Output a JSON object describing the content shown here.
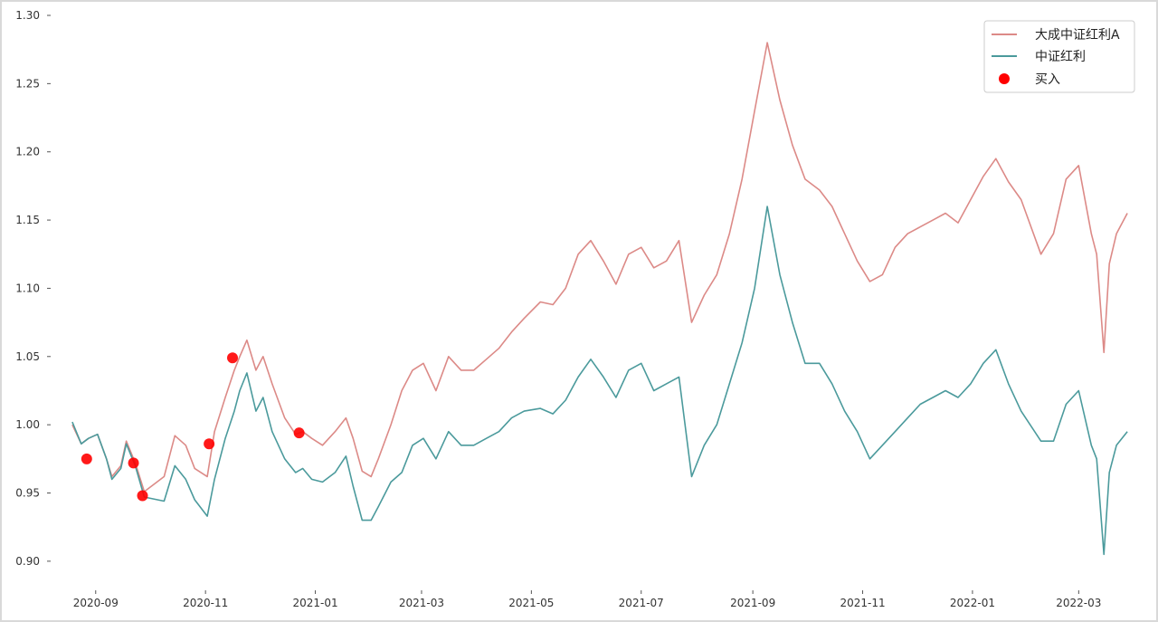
{
  "chart_data": {
    "type": "line",
    "x_start": "2020-08-19",
    "x_end": "2022-03-28",
    "xlim": [
      "2020-08-08",
      "2022-04-05"
    ],
    "ylim": [
      0.88,
      1.3
    ],
    "x_ticks": [
      "2020-09",
      "2020-11",
      "2021-01",
      "2021-03",
      "2021-05",
      "2021-07",
      "2021-09",
      "2021-11",
      "2022-01",
      "2022-03"
    ],
    "y_ticks": [
      "0.90",
      "0.95",
      "1.00",
      "1.05",
      "1.10",
      "1.15",
      "1.20",
      "1.25",
      "1.30"
    ],
    "grid": false,
    "legend_position": "top-right",
    "series": [
      {
        "name": "大成中证红利A",
        "color": "#dc8a87",
        "points": [
          [
            "2020-08-19",
            1.0
          ],
          [
            "2020-08-24",
            0.986
          ],
          [
            "2020-08-28",
            0.99
          ],
          [
            "2020-09-02",
            0.993
          ],
          [
            "2020-09-07",
            0.975
          ],
          [
            "2020-09-10",
            0.962
          ],
          [
            "2020-09-15",
            0.97
          ],
          [
            "2020-09-18",
            0.988
          ],
          [
            "2020-09-23",
            0.972
          ],
          [
            "2020-09-28",
            0.951
          ],
          [
            "2020-10-09",
            0.962
          ],
          [
            "2020-10-15",
            0.992
          ],
          [
            "2020-10-21",
            0.985
          ],
          [
            "2020-10-26",
            0.968
          ],
          [
            "2020-11-02",
            0.962
          ],
          [
            "2020-11-06",
            0.995
          ],
          [
            "2020-11-12",
            1.02
          ],
          [
            "2020-11-17",
            1.04
          ],
          [
            "2020-11-20",
            1.05
          ],
          [
            "2020-11-24",
            1.062
          ],
          [
            "2020-11-29",
            1.04
          ],
          [
            "2020-12-03",
            1.05
          ],
          [
            "2020-12-08",
            1.03
          ],
          [
            "2020-12-15",
            1.005
          ],
          [
            "2020-12-21",
            0.993
          ],
          [
            "2020-12-25",
            0.995
          ],
          [
            "2020-12-30",
            0.99
          ],
          [
            "2021-01-05",
            0.985
          ],
          [
            "2021-01-12",
            0.995
          ],
          [
            "2021-01-18",
            1.005
          ],
          [
            "2021-01-22",
            0.99
          ],
          [
            "2021-01-27",
            0.966
          ],
          [
            "2021-02-01",
            0.962
          ],
          [
            "2021-02-05",
            0.975
          ],
          [
            "2021-02-12",
            1.0
          ],
          [
            "2021-02-18",
            1.025
          ],
          [
            "2021-02-24",
            1.04
          ],
          [
            "2021-03-02",
            1.045
          ],
          [
            "2021-03-09",
            1.025
          ],
          [
            "2021-03-16",
            1.05
          ],
          [
            "2021-03-23",
            1.04
          ],
          [
            "2021-03-30",
            1.04
          ],
          [
            "2021-04-06",
            1.048
          ],
          [
            "2021-04-13",
            1.056
          ],
          [
            "2021-04-20",
            1.068
          ],
          [
            "2021-04-27",
            1.078
          ],
          [
            "2021-05-06",
            1.09
          ],
          [
            "2021-05-13",
            1.088
          ],
          [
            "2021-05-20",
            1.1
          ],
          [
            "2021-05-27",
            1.125
          ],
          [
            "2021-06-03",
            1.135
          ],
          [
            "2021-06-10",
            1.12
          ],
          [
            "2021-06-17",
            1.103
          ],
          [
            "2021-06-24",
            1.125
          ],
          [
            "2021-07-01",
            1.13
          ],
          [
            "2021-07-08",
            1.115
          ],
          [
            "2021-07-15",
            1.12
          ],
          [
            "2021-07-22",
            1.135
          ],
          [
            "2021-07-29",
            1.075
          ],
          [
            "2021-08-05",
            1.095
          ],
          [
            "2021-08-12",
            1.11
          ],
          [
            "2021-08-19",
            1.14
          ],
          [
            "2021-08-26",
            1.18
          ],
          [
            "2021-09-02",
            1.23
          ],
          [
            "2021-09-09",
            1.28
          ],
          [
            "2021-09-16",
            1.238
          ],
          [
            "2021-09-23",
            1.205
          ],
          [
            "2021-09-30",
            1.18
          ],
          [
            "2021-10-08",
            1.172
          ],
          [
            "2021-10-15",
            1.16
          ],
          [
            "2021-10-22",
            1.14
          ],
          [
            "2021-10-29",
            1.12
          ],
          [
            "2021-11-05",
            1.105
          ],
          [
            "2021-11-12",
            1.11
          ],
          [
            "2021-11-19",
            1.13
          ],
          [
            "2021-11-26",
            1.14
          ],
          [
            "2021-12-03",
            1.145
          ],
          [
            "2021-12-10",
            1.15
          ],
          [
            "2021-12-17",
            1.155
          ],
          [
            "2021-12-24",
            1.148
          ],
          [
            "2021-12-31",
            1.165
          ],
          [
            "2022-01-07",
            1.182
          ],
          [
            "2022-01-14",
            1.195
          ],
          [
            "2022-01-21",
            1.178
          ],
          [
            "2022-01-28",
            1.165
          ],
          [
            "2022-02-08",
            1.125
          ],
          [
            "2022-02-15",
            1.14
          ],
          [
            "2022-02-22",
            1.18
          ],
          [
            "2022-03-01",
            1.19
          ],
          [
            "2022-03-08",
            1.14
          ],
          [
            "2022-03-11",
            1.125
          ],
          [
            "2022-03-15",
            1.053
          ],
          [
            "2022-03-18",
            1.118
          ],
          [
            "2022-03-22",
            1.14
          ],
          [
            "2022-03-28",
            1.155
          ]
        ]
      },
      {
        "name": "中证红利",
        "color": "#4b9a9c",
        "points": [
          [
            "2020-08-19",
            1.002
          ],
          [
            "2020-08-24",
            0.986
          ],
          [
            "2020-08-28",
            0.99
          ],
          [
            "2020-09-02",
            0.993
          ],
          [
            "2020-09-07",
            0.975
          ],
          [
            "2020-09-10",
            0.96
          ],
          [
            "2020-09-15",
            0.968
          ],
          [
            "2020-09-18",
            0.986
          ],
          [
            "2020-09-23",
            0.97
          ],
          [
            "2020-09-28",
            0.947
          ],
          [
            "2020-10-09",
            0.944
          ],
          [
            "2020-10-15",
            0.97
          ],
          [
            "2020-10-21",
            0.96
          ],
          [
            "2020-10-26",
            0.945
          ],
          [
            "2020-11-02",
            0.933
          ],
          [
            "2020-11-06",
            0.96
          ],
          [
            "2020-11-12",
            0.99
          ],
          [
            "2020-11-17",
            1.01
          ],
          [
            "2020-11-20",
            1.025
          ],
          [
            "2020-11-24",
            1.038
          ],
          [
            "2020-11-29",
            1.01
          ],
          [
            "2020-12-03",
            1.02
          ],
          [
            "2020-12-08",
            0.995
          ],
          [
            "2020-12-15",
            0.975
          ],
          [
            "2020-12-21",
            0.965
          ],
          [
            "2020-12-25",
            0.968
          ],
          [
            "2020-12-30",
            0.96
          ],
          [
            "2021-01-05",
            0.958
          ],
          [
            "2021-01-12",
            0.965
          ],
          [
            "2021-01-18",
            0.977
          ],
          [
            "2021-01-22",
            0.955
          ],
          [
            "2021-01-27",
            0.93
          ],
          [
            "2021-02-01",
            0.93
          ],
          [
            "2021-02-05",
            0.94
          ],
          [
            "2021-02-12",
            0.958
          ],
          [
            "2021-02-18",
            0.965
          ],
          [
            "2021-02-24",
            0.985
          ],
          [
            "2021-03-02",
            0.99
          ],
          [
            "2021-03-09",
            0.975
          ],
          [
            "2021-03-16",
            0.995
          ],
          [
            "2021-03-23",
            0.985
          ],
          [
            "2021-03-30",
            0.985
          ],
          [
            "2021-04-06",
            0.99
          ],
          [
            "2021-04-13",
            0.995
          ],
          [
            "2021-04-20",
            1.005
          ],
          [
            "2021-04-27",
            1.01
          ],
          [
            "2021-05-06",
            1.012
          ],
          [
            "2021-05-13",
            1.008
          ],
          [
            "2021-05-20",
            1.018
          ],
          [
            "2021-05-27",
            1.035
          ],
          [
            "2021-06-03",
            1.048
          ],
          [
            "2021-06-10",
            1.035
          ],
          [
            "2021-06-17",
            1.02
          ],
          [
            "2021-06-24",
            1.04
          ],
          [
            "2021-07-01",
            1.045
          ],
          [
            "2021-07-08",
            1.025
          ],
          [
            "2021-07-15",
            1.03
          ],
          [
            "2021-07-22",
            1.035
          ],
          [
            "2021-07-29",
            0.962
          ],
          [
            "2021-08-05",
            0.985
          ],
          [
            "2021-08-12",
            1.0
          ],
          [
            "2021-08-19",
            1.03
          ],
          [
            "2021-08-26",
            1.06
          ],
          [
            "2021-09-02",
            1.1
          ],
          [
            "2021-09-09",
            1.16
          ],
          [
            "2021-09-16",
            1.11
          ],
          [
            "2021-09-23",
            1.075
          ],
          [
            "2021-09-30",
            1.045
          ],
          [
            "2021-10-08",
            1.045
          ],
          [
            "2021-10-15",
            1.03
          ],
          [
            "2021-10-22",
            1.01
          ],
          [
            "2021-10-29",
            0.995
          ],
          [
            "2021-11-05",
            0.975
          ],
          [
            "2021-11-12",
            0.985
          ],
          [
            "2021-11-19",
            0.995
          ],
          [
            "2021-11-26",
            1.005
          ],
          [
            "2021-12-03",
            1.015
          ],
          [
            "2021-12-10",
            1.02
          ],
          [
            "2021-12-17",
            1.025
          ],
          [
            "2021-12-24",
            1.02
          ],
          [
            "2021-12-31",
            1.03
          ],
          [
            "2022-01-07",
            1.045
          ],
          [
            "2022-01-14",
            1.055
          ],
          [
            "2022-01-21",
            1.03
          ],
          [
            "2022-01-28",
            1.01
          ],
          [
            "2022-02-08",
            0.988
          ],
          [
            "2022-02-15",
            0.988
          ],
          [
            "2022-02-22",
            1.015
          ],
          [
            "2022-03-01",
            1.025
          ],
          [
            "2022-03-08",
            0.985
          ],
          [
            "2022-03-11",
            0.975
          ],
          [
            "2022-03-15",
            0.905
          ],
          [
            "2022-03-18",
            0.965
          ],
          [
            "2022-03-22",
            0.985
          ],
          [
            "2022-03-28",
            0.995
          ]
        ]
      }
    ],
    "buy_points": {
      "name": "买入",
      "color": "#ff0000",
      "points": [
        [
          "2020-08-27",
          0.975
        ],
        [
          "2020-09-22",
          0.972
        ],
        [
          "2020-09-27",
          0.948
        ],
        [
          "2020-11-03",
          0.986
        ],
        [
          "2020-11-16",
          1.049
        ],
        [
          "2020-12-23",
          0.994
        ]
      ]
    }
  }
}
